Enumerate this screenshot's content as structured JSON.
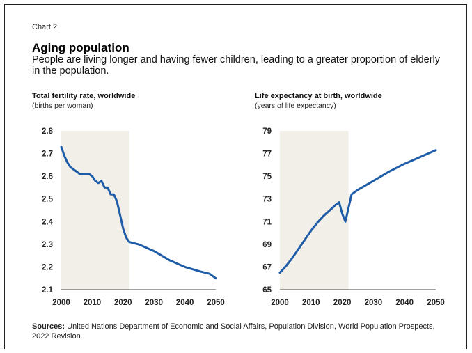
{
  "header": {
    "chart_number": "Chart 2",
    "title": "Aging population",
    "subtitle": "People are living longer and having fewer children, leading to a greater proportion of elderly in the population."
  },
  "footer": {
    "sources_label": "Sources:",
    "sources_text": " United Nations Department of Economic and Social Affairs, Population Division, World Population Prospects, 2022 Revision."
  },
  "colors": {
    "line": "#1f5ca8",
    "shade": "#f1efe8",
    "text": "#111111"
  },
  "chart_data": [
    {
      "type": "line",
      "title": "Total fertility rate, worldwide",
      "ylabel": "(births per woman)",
      "xlabel": "",
      "xlim": [
        2000,
        2050
      ],
      "ylim": [
        2.1,
        2.8
      ],
      "xticks": [
        2000,
        2010,
        2020,
        2030,
        2040,
        2050
      ],
      "yticks": [
        2.1,
        2.2,
        2.3,
        2.4,
        2.5,
        2.6,
        2.7,
        2.8
      ],
      "yticks_labels": [
        "2.1",
        "2.2",
        "2.3",
        "2.4",
        "2.5",
        "2.6",
        "2.7",
        "2.8"
      ],
      "shaded_range": [
        2000,
        2022
      ],
      "series": [
        {
          "x": [
            2000,
            2001,
            2002,
            2003,
            2004,
            2005,
            2006,
            2007,
            2008,
            2009,
            2010,
            2011,
            2012,
            2013,
            2014,
            2015,
            2016,
            2017,
            2018,
            2019,
            2020,
            2021,
            2022,
            2025,
            2030,
            2035,
            2040,
            2045,
            2048,
            2050
          ],
          "y": [
            2.73,
            2.69,
            2.66,
            2.64,
            2.63,
            2.62,
            2.61,
            2.61,
            2.61,
            2.61,
            2.6,
            2.58,
            2.57,
            2.58,
            2.55,
            2.55,
            2.52,
            2.52,
            2.49,
            2.43,
            2.37,
            2.33,
            2.31,
            2.3,
            2.27,
            2.23,
            2.2,
            2.18,
            2.17,
            2.15
          ]
        }
      ]
    },
    {
      "type": "line",
      "title": "Life expectancy at birth, worldwide",
      "ylabel": "(years of life expectancy)",
      "xlabel": "",
      "xlim": [
        2000,
        2050
      ],
      "ylim": [
        65,
        79
      ],
      "xticks": [
        2000,
        2010,
        2020,
        2030,
        2040,
        2050
      ],
      "yticks": [
        65,
        67,
        69,
        71,
        73,
        75,
        77,
        79
      ],
      "yticks_labels": [
        "65",
        "67",
        "69",
        "71",
        "73",
        "75",
        "77",
        "79"
      ],
      "shaded_range": [
        2000,
        2022
      ],
      "series": [
        {
          "x": [
            2000,
            2002,
            2004,
            2006,
            2008,
            2010,
            2012,
            2014,
            2016,
            2018,
            2019,
            2020,
            2021,
            2022,
            2023,
            2025,
            2030,
            2035,
            2040,
            2045,
            2050
          ],
          "y": [
            66.5,
            67.1,
            67.8,
            68.6,
            69.4,
            70.2,
            70.9,
            71.5,
            72.0,
            72.5,
            72.7,
            71.7,
            71.0,
            72.2,
            73.4,
            73.8,
            74.6,
            75.4,
            76.1,
            76.7,
            77.3
          ]
        }
      ]
    }
  ]
}
